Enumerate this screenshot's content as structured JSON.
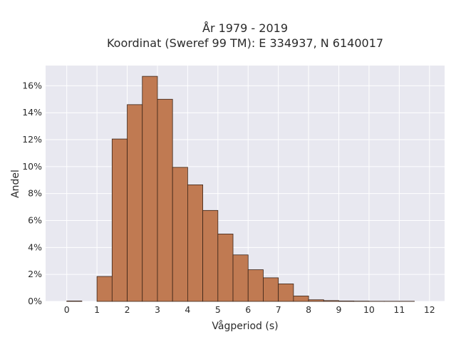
{
  "chart_data": {
    "type": "bar",
    "title_lines": [
      "År 1979 - 2019",
      "Koordinat (Sweref 99 TM): E 334937, N 6140017"
    ],
    "xlabel": "Vågperiod (s)",
    "ylabel": "Andel",
    "xlim": [
      -0.7,
      12.5
    ],
    "ylim": [
      0,
      0.175
    ],
    "x_ticks": [
      0,
      1,
      2,
      3,
      4,
      5,
      6,
      7,
      8,
      9,
      10,
      11,
      12
    ],
    "y_ticks": [
      0,
      0.02,
      0.04,
      0.06,
      0.08,
      0.1,
      0.12,
      0.14,
      0.16
    ],
    "y_tick_labels": [
      "0%",
      "2%",
      "4%",
      "6%",
      "8%",
      "10%",
      "12%",
      "14%",
      "16%"
    ],
    "bin_width": 0.5,
    "bins": [
      {
        "x0": 0.0,
        "value": 0.0003
      },
      {
        "x0": 0.5,
        "value": 0.0
      },
      {
        "x0": 1.0,
        "value": 0.0185
      },
      {
        "x0": 1.5,
        "value": 0.1205
      },
      {
        "x0": 2.0,
        "value": 0.146
      },
      {
        "x0": 2.5,
        "value": 0.167
      },
      {
        "x0": 3.0,
        "value": 0.15
      },
      {
        "x0": 3.5,
        "value": 0.0995
      },
      {
        "x0": 4.0,
        "value": 0.0865
      },
      {
        "x0": 4.5,
        "value": 0.0675
      },
      {
        "x0": 5.0,
        "value": 0.05
      },
      {
        "x0": 5.5,
        "value": 0.0345
      },
      {
        "x0": 6.0,
        "value": 0.0235
      },
      {
        "x0": 6.5,
        "value": 0.0175
      },
      {
        "x0": 7.0,
        "value": 0.013
      },
      {
        "x0": 7.5,
        "value": 0.004
      },
      {
        "x0": 8.0,
        "value": 0.0012
      },
      {
        "x0": 8.5,
        "value": 0.0006
      },
      {
        "x0": 9.0,
        "value": 0.0003
      },
      {
        "x0": 9.5,
        "value": 0.0002
      },
      {
        "x0": 10.0,
        "value": 0.0001
      },
      {
        "x0": 10.5,
        "value": 0.0001
      },
      {
        "x0": 11.0,
        "value": 0.0001
      }
    ],
    "grid": true,
    "colors": {
      "plot_bg": "#e8e8f0",
      "grid": "#ffffff",
      "bar_fill": "#c07a52",
      "bar_edge": "#3a2418"
    }
  }
}
